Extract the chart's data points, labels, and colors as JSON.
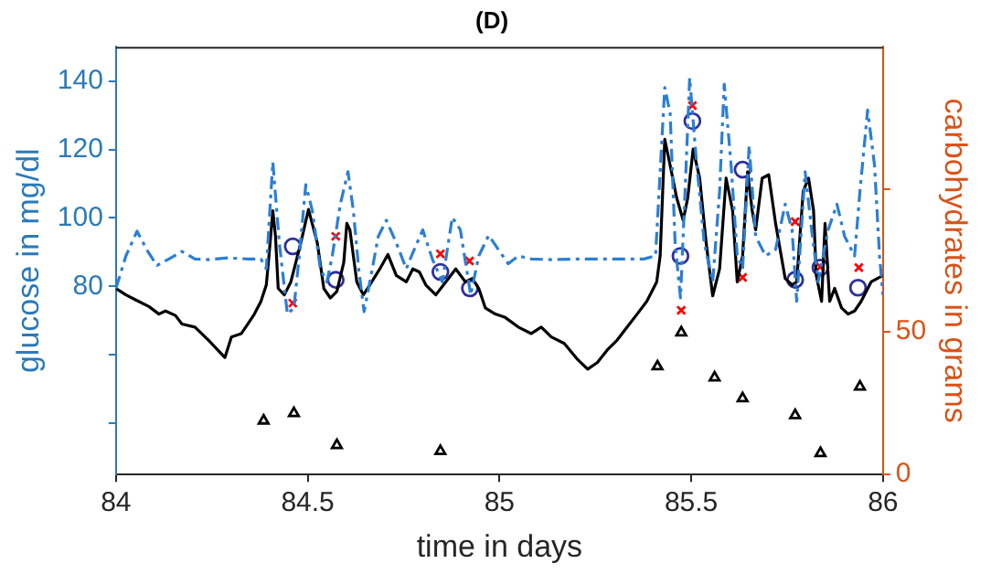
{
  "chart_data": {
    "type": "line",
    "title": "(D)",
    "xlabel": "time in days",
    "ylabel": "glucose in mg/dl",
    "y2label": "carbohydrates in grams",
    "xlim": [
      84,
      86
    ],
    "xticks": [
      84,
      84.5,
      85,
      85.5,
      86
    ],
    "ylim": [
      25,
      150
    ],
    "yticks": [
      {
        "value": 40,
        "label": null
      },
      {
        "value": 60,
        "label": null
      },
      80,
      100,
      120,
      140
    ],
    "y2lim": [
      0,
      150
    ],
    "y2ticks": [
      0,
      50,
      {
        "value": 100,
        "label": null
      }
    ],
    "grid": false,
    "legend": false,
    "series": [
      {
        "type": "line",
        "color": "#2a7fd4",
        "line_style": "dashed",
        "marker": "none",
        "x": [
          84.0,
          84.026,
          84.055,
          84.083,
          84.107,
          84.138,
          84.172,
          84.206,
          84.241,
          84.292,
          84.344,
          84.378,
          84.392,
          84.409,
          84.426,
          84.447,
          84.464,
          84.478,
          84.495,
          84.512,
          84.533,
          84.55,
          84.564,
          84.585,
          84.605,
          84.619,
          84.633,
          84.647,
          84.662,
          84.684,
          84.705,
          84.731,
          84.757,
          84.774,
          84.8,
          84.825,
          84.851,
          84.877,
          84.898,
          84.925,
          84.946,
          84.972,
          84.997,
          85.023,
          85.049,
          85.083,
          85.135,
          85.204,
          85.376,
          85.407,
          85.431,
          85.445,
          85.458,
          85.472,
          85.484,
          85.496,
          85.513,
          85.534,
          85.556,
          85.574,
          85.586,
          85.604,
          85.62,
          85.634,
          85.651,
          85.668,
          85.694,
          85.72,
          85.745,
          85.763,
          85.775,
          85.797,
          85.814,
          85.831,
          85.857,
          85.88,
          85.9,
          85.926,
          85.94,
          85.96,
          85.978,
          85.991,
          86.0
        ],
        "values": [
          79.4,
          88.9,
          96.1,
          90.2,
          86.1,
          88.0,
          90.2,
          88.0,
          87.8,
          88.3,
          88.0,
          88.0,
          85.1,
          116.3,
          92.7,
          71.9,
          73.7,
          88.9,
          109.7,
          102.1,
          85.1,
          81.3,
          88.9,
          104.0,
          113.5,
          102.1,
          85.1,
          72.6,
          81.3,
          94.6,
          99.3,
          92.7,
          85.1,
          89.8,
          96.5,
          88.0,
          81.3,
          100.2,
          96.5,
          77.5,
          88.9,
          94.9,
          90.8,
          86.6,
          88.9,
          88.0,
          87.8,
          88.0,
          88.0,
          88.9,
          138.1,
          130.6,
          92.7,
          76.6,
          107.8,
          140.9,
          117.3,
          92.7,
          81.3,
          107.8,
          139.1,
          115.4,
          88.9,
          85.1,
          121.1,
          94.6,
          88.9,
          90.8,
          104.0,
          96.5,
          75.6,
          113.5,
          96.5,
          81.3,
          96.5,
          104.0,
          94.6,
          88.9,
          107.8,
          131.5,
          115.4,
          88.9,
          77.5
        ]
      },
      {
        "type": "line",
        "color": "#000000",
        "line_style": "solid",
        "marker": "none",
        "x": [
          84.0,
          84.026,
          84.052,
          84.086,
          84.112,
          84.129,
          84.155,
          84.172,
          84.206,
          84.241,
          84.284,
          84.301,
          84.327,
          84.344,
          84.361,
          84.378,
          84.392,
          84.399,
          84.409,
          84.416,
          84.423,
          84.439,
          84.456,
          84.482,
          84.502,
          84.525,
          84.542,
          84.559,
          84.576,
          84.594,
          84.602,
          84.61,
          84.628,
          84.645,
          84.662,
          84.688,
          84.709,
          84.731,
          84.757,
          84.774,
          84.791,
          84.808,
          84.834,
          84.86,
          84.886,
          84.911,
          84.929,
          84.946,
          84.963,
          84.989,
          85.015,
          85.049,
          85.083,
          85.109,
          85.135,
          85.169,
          85.204,
          85.23,
          85.255,
          85.281,
          85.307,
          85.333,
          85.359,
          85.384,
          85.41,
          85.419,
          85.431,
          85.445,
          85.462,
          85.479,
          85.491,
          85.505,
          85.522,
          85.539,
          85.556,
          85.574,
          85.591,
          85.608,
          85.62,
          85.634,
          85.647,
          85.659,
          85.668,
          85.685,
          85.702,
          85.72,
          85.745,
          85.763,
          85.775,
          85.792,
          85.806,
          85.819,
          85.826,
          85.84,
          85.849,
          85.861,
          85.874,
          85.892,
          85.909,
          85.926,
          85.943,
          85.969,
          86.0
        ],
        "values": [
          79.4,
          77.5,
          76.0,
          74.1,
          71.9,
          72.8,
          71.5,
          69.0,
          68.1,
          64.3,
          59.2,
          65.2,
          66.2,
          69.0,
          71.9,
          75.6,
          80.4,
          88.9,
          102.1,
          94.6,
          79.4,
          77.5,
          81.3,
          92.7,
          102.5,
          92.7,
          79.4,
          76.6,
          78.5,
          87.0,
          98.4,
          96.5,
          81.3,
          77.5,
          80.4,
          85.1,
          89.3,
          83.2,
          81.3,
          85.1,
          84.2,
          80.4,
          77.5,
          81.3,
          85.1,
          81.3,
          82.3,
          79.4,
          73.7,
          71.9,
          70.9,
          68.1,
          66.2,
          68.1,
          65.2,
          63.3,
          58.6,
          55.8,
          57.7,
          61.4,
          64.3,
          68.1,
          71.9,
          75.6,
          81.3,
          88.9,
          123.0,
          115.4,
          105.9,
          99.3,
          105.9,
          120.1,
          111.6,
          92.7,
          77.2,
          85.1,
          111.6,
          102.1,
          81.3,
          88.9,
          113.5,
          102.1,
          96.5,
          111.6,
          112.6,
          98.4,
          82.3,
          80.4,
          81.3,
          107.8,
          111.6,
          102.1,
          83.2,
          75.6,
          98.4,
          75.6,
          79.4,
          73.7,
          71.9,
          72.8,
          75.6,
          81.3,
          83.2
        ]
      },
      {
        "type": "scatter",
        "color": "#2e2e9e",
        "marker": "circle",
        "x": [
          84.461,
          84.573,
          84.846,
          84.923,
          85.472,
          85.503,
          85.634,
          85.771,
          85.837,
          85.935
        ],
        "values": [
          91.7,
          81.9,
          84.2,
          79.4,
          88.9,
          128.3,
          114.1,
          81.9,
          85.5,
          79.6
        ]
      },
      {
        "type": "scatter",
        "color": "#ff0000",
        "marker": "cross",
        "x": [
          84.461,
          84.573,
          84.846,
          84.922,
          85.474,
          85.503,
          85.634,
          85.771,
          85.837,
          85.937
        ],
        "values": [
          75.1,
          94.6,
          89.5,
          87.4,
          73.0,
          132.8,
          82.6,
          98.9,
          85.7,
          85.5
        ]
      },
      {
        "type": "scatter",
        "color": "#000000",
        "marker": "triangle",
        "axis": "y2",
        "x": [
          84.385,
          84.464,
          84.576,
          84.846,
          85.412,
          85.474,
          85.561,
          85.634,
          85.771,
          85.837,
          85.94
        ],
        "values": [
          18.9,
          21.5,
          10.3,
          8.2,
          37.9,
          49.8,
          34.0,
          26.7,
          20.8,
          7.5,
          30.8
        ]
      }
    ]
  }
}
